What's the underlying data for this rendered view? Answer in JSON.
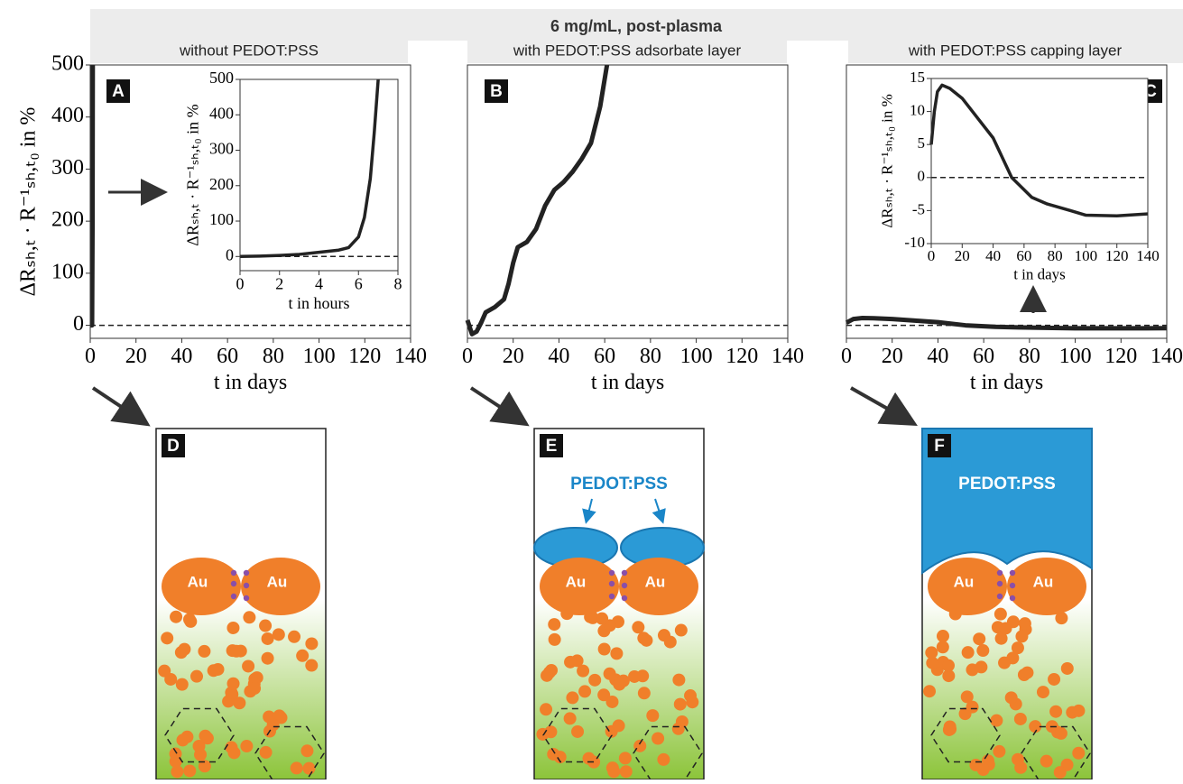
{
  "header": {
    "title": "6 mg/mL, post-plasma",
    "columns": [
      "without PEDOT:PSS",
      "with PEDOT:PSS adsorbate layer",
      "with PEDOT:PSS capping layer"
    ]
  },
  "chart_data": [
    {
      "type": "line",
      "panel": "A",
      "xlabel": "t in days",
      "ylabel": "ΔRₛₕ,ₜ · R⁻¹ₛₕ,ₜ₀ in %",
      "xlim": [
        0,
        140
      ],
      "ylim": [
        -25,
        500
      ],
      "xticks": [
        0,
        20,
        40,
        60,
        80,
        100,
        120,
        140
      ],
      "yticks": [
        0,
        100,
        200,
        300,
        400,
        500
      ],
      "reference_line": 0,
      "x": [
        0,
        0.8,
        1,
        1.1
      ],
      "series": [
        {
          "color": "#222222",
          "values": [
            0,
            0,
            200,
            500
          ]
        }
      ]
    },
    {
      "type": "line",
      "xlabel": "t in hours",
      "ylabel": "ΔRₛₕ,ₜ · R⁻¹ₛₕ,ₜ₀ in %",
      "xlim": [
        0,
        8
      ],
      "ylim": [
        -40,
        500
      ],
      "xticks": [
        0,
        2,
        4,
        6,
        8
      ],
      "yticks": [
        0,
        100,
        200,
        300,
        400,
        500
      ],
      "reference_line": 0,
      "x": [
        0,
        1,
        2,
        3,
        4,
        5,
        5.5,
        6,
        6.3,
        6.6,
        6.8,
        7
      ],
      "series": [
        {
          "color": "#222222",
          "values": [
            0,
            1,
            3,
            6,
            12,
            18,
            25,
            55,
            110,
            220,
            350,
            500
          ]
        }
      ]
    },
    {
      "type": "line",
      "panel": "B",
      "xlabel": "t in days",
      "xlim": [
        0,
        140
      ],
      "ylim": [
        -25,
        500
      ],
      "xticks": [
        0,
        20,
        40,
        60,
        80,
        100,
        120,
        140
      ],
      "reference_line": 0,
      "x": [
        0,
        2,
        4,
        6,
        8,
        12,
        16,
        18,
        20,
        22,
        26,
        30,
        34,
        38,
        42,
        46,
        50,
        54,
        58,
        61
      ],
      "series": [
        {
          "color": "#222222",
          "values": [
            10,
            -17,
            -12,
            5,
            25,
            35,
            50,
            80,
            120,
            150,
            160,
            185,
            230,
            260,
            275,
            295,
            320,
            350,
            420,
            500
          ]
        }
      ]
    },
    {
      "type": "line",
      "panel": "C",
      "xlabel": "t in days",
      "xlim": [
        0,
        140
      ],
      "ylim": [
        -25,
        500
      ],
      "xticks": [
        0,
        20,
        40,
        60,
        80,
        100,
        120,
        140
      ],
      "reference_line": 0,
      "x": [
        0,
        3,
        7,
        12,
        20,
        30,
        40,
        52,
        65,
        75,
        90,
        100,
        120,
        140
      ],
      "series": [
        {
          "color": "#222222",
          "values": [
            5,
            12,
            14,
            13.5,
            12,
            9,
            6,
            0,
            -3,
            -4,
            -5,
            -5.7,
            -5.8,
            -5.5
          ]
        }
      ]
    },
    {
      "type": "line",
      "xlabel": "t in days",
      "ylabel": "ΔRₛₕ,ₜ · R⁻¹ₛₕ,ₜ₀ in %",
      "xlim": [
        0,
        140
      ],
      "ylim": [
        -10,
        15
      ],
      "xticks": [
        0,
        20,
        40,
        60,
        80,
        100,
        120,
        140
      ],
      "yticks": [
        -10,
        -5,
        0,
        5,
        10,
        15
      ],
      "reference_line": 0,
      "x": [
        0,
        2,
        4,
        7,
        12,
        20,
        30,
        40,
        52,
        65,
        75,
        90,
        100,
        120,
        140
      ],
      "series": [
        {
          "color": "#222222",
          "values": [
            5,
            10,
            13,
            14,
            13.5,
            12,
            9,
            6,
            0,
            -3,
            -4,
            -5,
            -5.7,
            -5.8,
            -5.5
          ]
        }
      ]
    }
  ],
  "diagrams": [
    {
      "letter": "D",
      "particles": [
        "Au",
        "Au"
      ]
    },
    {
      "letter": "E",
      "particles": [
        "Au",
        "Au"
      ],
      "layer": "PEDOT:PSS"
    },
    {
      "letter": "F",
      "particles": [
        "Au",
        "Au"
      ],
      "layer": "PEDOT:PSS"
    }
  ]
}
